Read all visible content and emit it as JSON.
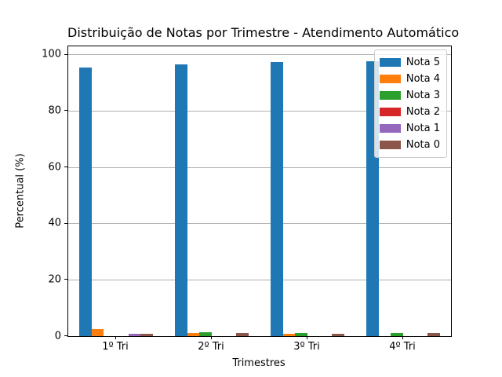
{
  "chart_data": {
    "type": "bar",
    "title": "Distribuição de Notas por Trimestre - Atendimento Automático",
    "xlabel": "Trimestres",
    "ylabel": "Percentual (%)",
    "categories": [
      "1º Tri",
      "2º Tri",
      "3º Tri",
      "4º Tri"
    ],
    "series": [
      {
        "name": "Nota 5",
        "color": "#1f77b4",
        "values": [
          95.5,
          96.5,
          97.3,
          97.8
        ]
      },
      {
        "name": "Nota 4",
        "color": "#ff7f0e",
        "values": [
          2.5,
          1.1,
          0.8,
          0.0
        ]
      },
      {
        "name": "Nota 3",
        "color": "#2ca02c",
        "values": [
          0.1,
          1.3,
          1.0,
          1.1
        ]
      },
      {
        "name": "Nota 2",
        "color": "#d62728",
        "values": [
          0.1,
          0.0,
          0.0,
          0.0
        ]
      },
      {
        "name": "Nota 1",
        "color": "#9467bd",
        "values": [
          0.9,
          0.0,
          0.0,
          0.0
        ]
      },
      {
        "name": "Nota 0",
        "color": "#8c564b",
        "values": [
          0.9,
          1.1,
          0.9,
          1.1
        ]
      }
    ],
    "yticks": [
      0,
      20,
      40,
      60,
      80,
      100
    ],
    "ylim": [
      0,
      103
    ],
    "grid": true,
    "grid_color": "#b0b0b0",
    "legend_position": "upper right",
    "axis_color": "#000000",
    "background_color": "#ffffff"
  }
}
